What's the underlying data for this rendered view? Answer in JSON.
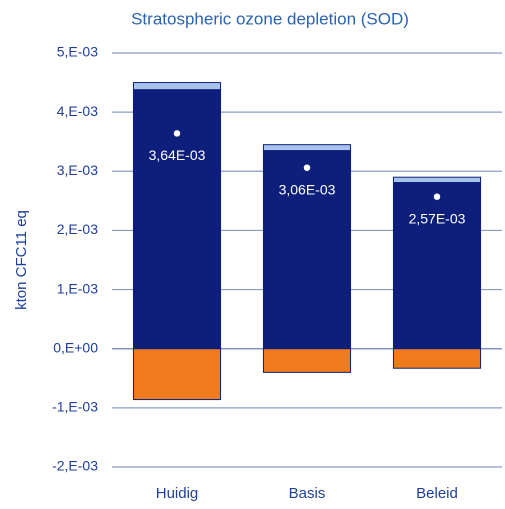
{
  "chart_data": {
    "type": "bar",
    "stacked": true,
    "title": "Stratospheric ozone depletion (SOD)",
    "y_label": "kton CFC11 eq",
    "categories": [
      "Huidig",
      "Basis",
      "Beleid"
    ],
    "series": [
      {
        "color": "#0d1f7a",
        "values": [
          0.00438,
          0.00335,
          0.00281
        ]
      },
      {
        "color": "#a9c4ec",
        "values": [
          0.00012,
          0.0001,
          9e-05
        ]
      },
      {
        "color": "#f07a1e",
        "values": [
          -0.00086,
          -0.0004,
          -0.00033
        ]
      }
    ],
    "net_values": [
      0.00364,
      0.00306,
      0.00257
    ],
    "net_value_labels": [
      "3,64E-03",
      "3,06E-03",
      "2,57E-03"
    ],
    "ylim": [
      -0.002,
      0.005
    ],
    "yticks": [
      {
        "value": -0.002,
        "label": "-2,E-03"
      },
      {
        "value": -0.001,
        "label": "-1,E-03"
      },
      {
        "value": 0,
        "label": "0,E+00"
      },
      {
        "value": 0.001,
        "label": "1,E-03"
      },
      {
        "value": 0.002,
        "label": "2,E-03"
      },
      {
        "value": 0.003,
        "label": "3,E-03"
      },
      {
        "value": 0.004,
        "label": "4,E-03"
      },
      {
        "value": 0.005,
        "label": "5,E-03"
      }
    ],
    "grid": true
  }
}
